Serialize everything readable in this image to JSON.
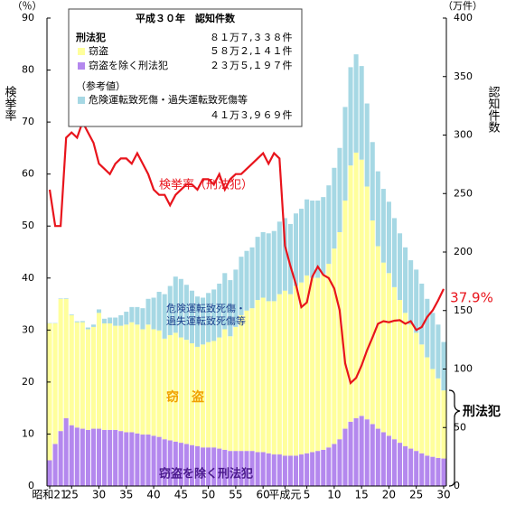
{
  "chart_data": {
    "type": "bar-line",
    "axis_label_left": "検挙率",
    "axis_unit_left": "（％）",
    "axis_label_right": "認知件数",
    "axis_unit_right": "（万件）",
    "categories": [
      "昭和21",
      null,
      null,
      null,
      "25",
      null,
      null,
      null,
      null,
      "30",
      null,
      null,
      null,
      null,
      "35",
      null,
      null,
      null,
      null,
      "40",
      null,
      null,
      null,
      null,
      "45",
      null,
      null,
      null,
      null,
      "50",
      null,
      null,
      null,
      null,
      "55",
      null,
      null,
      null,
      null,
      "60",
      null,
      null,
      null,
      "平成元",
      null,
      null,
      null,
      "5",
      null,
      null,
      null,
      null,
      "10",
      null,
      null,
      null,
      null,
      "15",
      null,
      null,
      null,
      null,
      "20",
      null,
      null,
      null,
      null,
      "25",
      null,
      null,
      null,
      null,
      "30"
    ],
    "ylim": [
      0,
      90
    ],
    "yticks": [
      0,
      10,
      20,
      30,
      40,
      50,
      60,
      70,
      80,
      90
    ],
    "y2lim": [
      0,
      400
    ],
    "y2ticks": [
      0,
      50,
      100,
      150,
      200,
      250,
      300,
      350,
      400
    ],
    "series": [
      {
        "name": "窃盗を除く刑法犯",
        "color": "#b488ee",
        "axis": "y2",
        "values": [
          22,
          36,
          47,
          58,
          52,
          50,
          49,
          48,
          49,
          49,
          48,
          48,
          48,
          47,
          46,
          46,
          45,
          44,
          44,
          43,
          42,
          40,
          39,
          38,
          37,
          36,
          35,
          34,
          33,
          33,
          33,
          32,
          31,
          30,
          30,
          30,
          30,
          30,
          29,
          29,
          28,
          27,
          27,
          26,
          26,
          26,
          27,
          28,
          29,
          30,
          31,
          33,
          36,
          40,
          49,
          55,
          58,
          60,
          57,
          53,
          49,
          46,
          43,
          40,
          37,
          34,
          32,
          30,
          28,
          26,
          25,
          24,
          23.5197
        ]
      },
      {
        "name": "窃盗",
        "color": "#ffff9c",
        "axis": "y2",
        "values": [
          117,
          103,
          113,
          102,
          94,
          90,
          91,
          86,
          87,
          99,
          91,
          91,
          89,
          90,
          92,
          94,
          93,
          90,
          94,
          91,
          91,
          86,
          90,
          93,
          90,
          89,
          87,
          85,
          88,
          90,
          91,
          95,
          103,
          98,
          106,
          116,
          120,
          122,
          130,
          132,
          130,
          131,
          137,
          141,
          138,
          145,
          147,
          152,
          149,
          148,
          150,
          157,
          167,
          177,
          195,
          219,
          227,
          219,
          199,
          174,
          156,
          145,
          139,
          130,
          122,
          114,
          106,
          101,
          93,
          84,
          75,
          68,
          58.2141
        ]
      },
      {
        "name": "危険運転致死傷・過失運転致死傷等",
        "color": "#a6d8e4",
        "axis": "y2",
        "values": [
          0.3,
          0.3,
          0.4,
          0.5,
          0.6,
          0.8,
          1,
          1.5,
          2,
          3,
          4,
          5,
          7,
          9,
          11,
          13,
          15,
          18,
          22,
          27,
          33,
          38,
          42,
          48,
          50,
          47,
          45,
          43,
          40,
          42,
          44,
          46,
          48,
          48,
          49,
          50,
          51,
          52,
          54,
          56,
          58,
          60,
          62,
          62,
          60,
          62,
          63,
          65,
          66,
          66,
          66,
          67,
          69,
          72,
          80,
          84,
          84,
          80,
          71,
          67,
          64,
          63,
          61,
          59,
          57,
          56,
          55,
          54,
          52,
          50,
          48,
          46,
          41.3969
        ]
      },
      {
        "name": "検挙率（刑法犯）",
        "color": "#e8141c",
        "type": "line",
        "values": [
          57,
          50,
          50,
          67,
          68,
          67,
          70,
          68,
          66,
          62,
          61,
          60,
          62,
          63,
          63,
          62,
          64,
          62,
          60,
          57,
          56,
          56,
          54,
          56,
          57,
          58,
          58,
          57,
          59,
          59,
          58,
          60,
          57,
          59,
          60,
          60,
          61,
          62,
          63,
          64,
          62,
          64,
          63,
          46.2,
          42.3,
          38.8,
          34.4,
          35.3,
          40.3,
          42.2,
          40.6,
          40.0,
          38.0,
          33.8,
          23.6,
          19.8,
          20.8,
          23.2,
          26.1,
          28.6,
          31.2,
          31.7,
          31.5,
          31.8,
          31.9,
          31.2,
          31.7,
          30.0,
          30.6,
          32.5,
          33.8,
          35.7,
          37.9
        ]
      }
    ],
    "info_box": {
      "title": "平成３０年　認知件数",
      "total_label": "刑法犯",
      "total_value": "８１万７,３３８件",
      "theft_value": "５８万２,１４１件",
      "other_value": "２３万５,１９７件",
      "reference_label": "（参考値）",
      "traffic_value": "４１万３,９６９件"
    },
    "annotations": {
      "last_rate": "37.9%",
      "traffic_line1": "危険運転致死傷・",
      "traffic_line2": "過失運転致死傷等",
      "theft": "窃　盗",
      "other": "窃盗を除く刑法犯",
      "penal": "刑法犯"
    }
  }
}
